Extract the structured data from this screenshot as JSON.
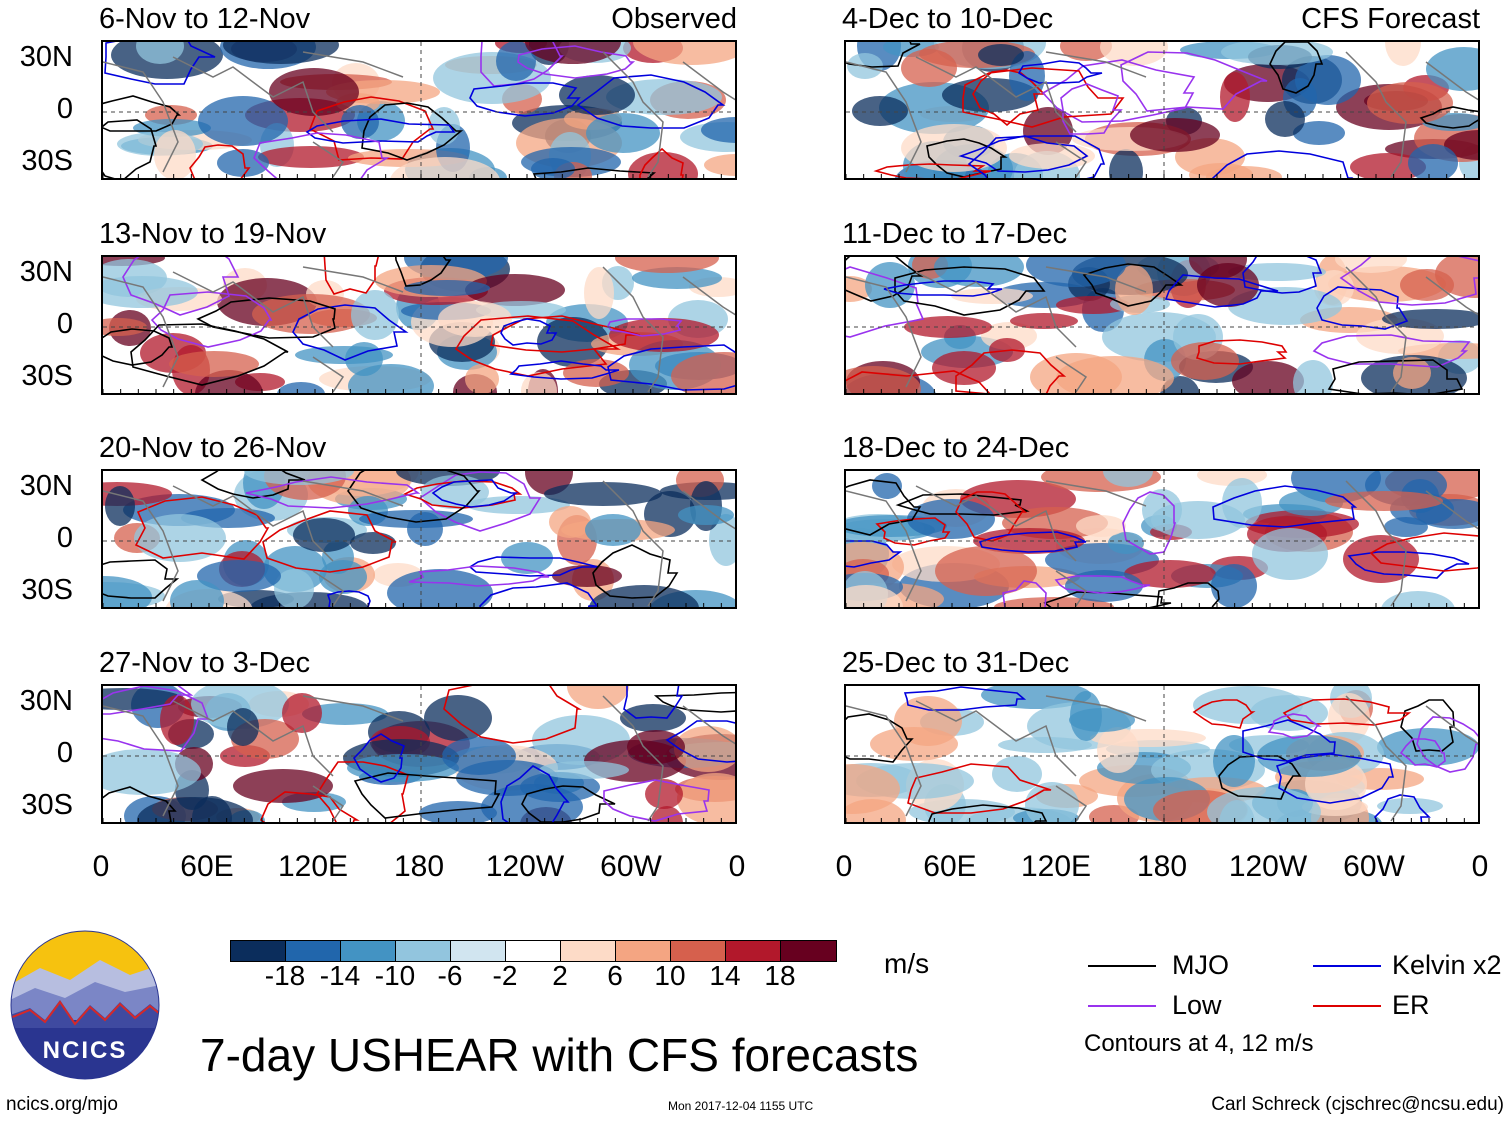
{
  "panels": [
    {
      "title": "6-Nov to 12-Nov",
      "tag": "Observed",
      "col": 0,
      "row": 0
    },
    {
      "title": "13-Nov to 19-Nov",
      "tag": "",
      "col": 0,
      "row": 1
    },
    {
      "title": "20-Nov to 26-Nov",
      "tag": "",
      "col": 0,
      "row": 2
    },
    {
      "title": "27-Nov to 3-Dec",
      "tag": "",
      "col": 0,
      "row": 3
    },
    {
      "title": "4-Dec to 10-Dec",
      "tag": "CFS Forecast",
      "col": 1,
      "row": 0
    },
    {
      "title": "11-Dec to 17-Dec",
      "tag": "",
      "col": 1,
      "row": 1
    },
    {
      "title": "18-Dec to 24-Dec",
      "tag": "",
      "col": 1,
      "row": 2
    },
    {
      "title": "25-Dec to 31-Dec",
      "tag": "",
      "col": 1,
      "row": 3
    }
  ],
  "lat_labels": [
    "30N",
    "0",
    "30S"
  ],
  "lon_labels": [
    "0",
    "60E",
    "120E",
    "180",
    "120W",
    "60W",
    "0"
  ],
  "colorbar": {
    "colors": [
      "#0b2d5c",
      "#2166ac",
      "#4393c3",
      "#92c5de",
      "#d1e5f0",
      "#ffffff",
      "#fddbc7",
      "#f4a582",
      "#d6604d",
      "#b2182b",
      "#67001f"
    ],
    "labels": [
      "-18",
      "-14",
      "-10",
      "-6",
      "-2",
      "2",
      "6",
      "10",
      "14",
      "18"
    ],
    "units": "m/s"
  },
  "title": "7-day USHEAR with CFS forecasts",
  "legend": [
    {
      "label": "MJO",
      "color": "#000000"
    },
    {
      "label": "Kelvin x2",
      "color": "#0000dd"
    },
    {
      "label": "Low",
      "color": "#9933ee"
    },
    {
      "label": "ER",
      "color": "#dd0000"
    }
  ],
  "contour_note": "Contours at 4, 12 m/s",
  "logo_text": "NCICS",
  "footer": {
    "url": "ncics.org/mjo",
    "timestamp": "Mon 2017-12-04 1155 UTC",
    "credit": "Carl Schreck (cjschrec@ncsu.edu)"
  }
}
